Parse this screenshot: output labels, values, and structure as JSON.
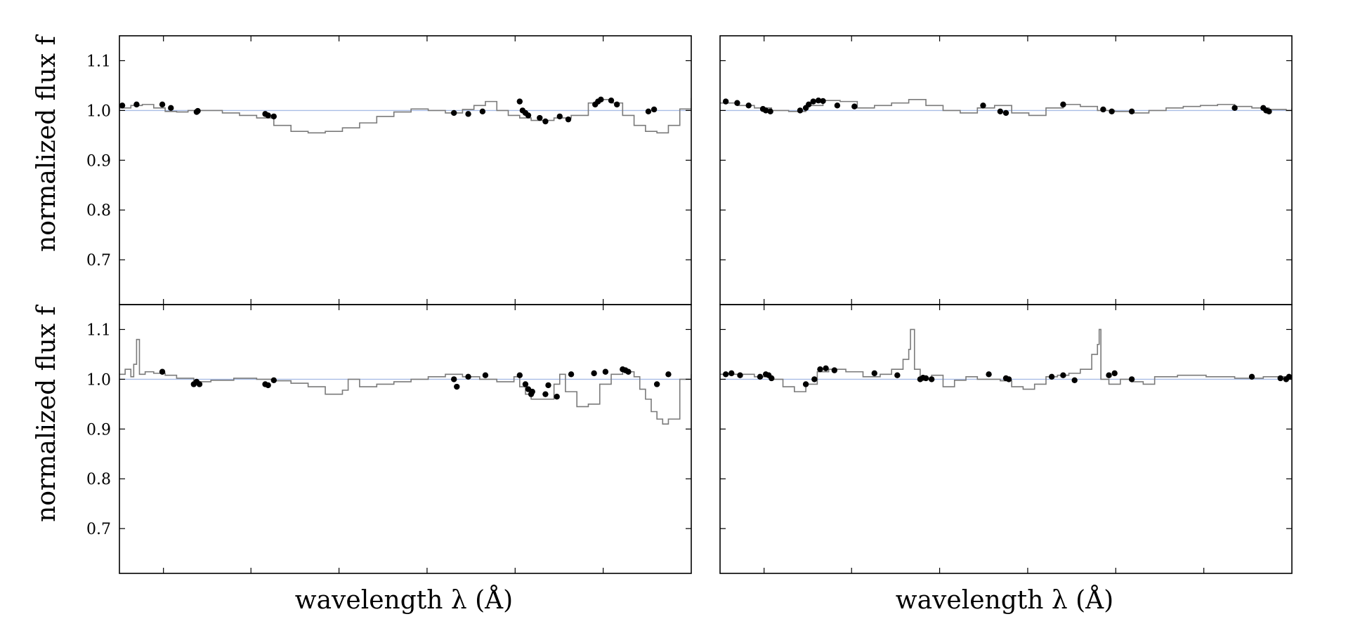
{
  "figure": {
    "ylabel": "normalized flux f",
    "xlabel": "wavelength λ (Å)"
  },
  "colors": {
    "spectrum": "#7a7a7a",
    "points": "#000000",
    "reference_line": "#a9bde6",
    "axes": "#000000"
  },
  "chart_data": [
    {
      "type": "line",
      "panel": "top-left",
      "ylim": [
        0.61,
        1.15
      ],
      "xlim": [
        0,
        1000
      ],
      "yticks": [
        0.7,
        0.8,
        0.9,
        1.0,
        1.1
      ],
      "ytick_labels": [
        "0.7",
        "0.8",
        "0.9",
        "1.0",
        "1.1"
      ],
      "reference_y": 1.0,
      "spectrum_x": [
        0,
        20,
        40,
        60,
        80,
        100,
        120,
        150,
        180,
        210,
        240,
        270,
        300,
        330,
        360,
        390,
        420,
        450,
        480,
        510,
        540,
        570,
        600,
        620,
        640,
        660,
        680,
        700,
        720,
        740,
        760,
        790,
        820,
        840,
        860,
        880,
        900,
        920,
        940,
        960,
        980,
        1000
      ],
      "spectrum_y": [
        1.005,
        1.01,
        1.012,
        1.005,
        0.998,
        0.997,
        1.0,
        1.0,
        0.995,
        0.99,
        0.985,
        0.97,
        0.958,
        0.955,
        0.958,
        0.965,
        0.975,
        0.988,
        0.997,
        1.003,
        1.0,
        0.995,
        1.002,
        1.01,
        1.018,
        1.0,
        0.99,
        0.985,
        0.98,
        0.98,
        0.985,
        0.99,
        1.015,
        1.022,
        1.015,
        0.99,
        0.97,
        0.958,
        0.955,
        0.97,
        1.003,
        1.025
      ],
      "points_x": [
        5,
        30,
        75,
        90,
        135,
        137,
        255,
        260,
        270,
        585,
        610,
        635,
        700,
        705,
        710,
        715,
        735,
        745,
        770,
        785,
        832,
        837,
        842,
        860,
        870,
        925,
        935
      ],
      "points_y": [
        1.01,
        1.012,
        1.012,
        1.005,
        0.997,
        0.999,
        0.993,
        0.99,
        0.988,
        0.995,
        0.993,
        0.998,
        1.018,
        1.0,
        0.995,
        0.99,
        0.985,
        0.978,
        0.988,
        0.982,
        1.012,
        1.018,
        1.022,
        1.02,
        1.012,
        0.998,
        1.002
      ]
    },
    {
      "type": "line",
      "panel": "top-right",
      "ylim": [
        0.61,
        1.15
      ],
      "xlim": [
        0,
        1000
      ],
      "yticks": [
        0.7,
        0.8,
        0.9,
        1.0,
        1.1
      ],
      "ytick_labels": [
        "0.7",
        "0.8",
        "0.9",
        "1.0",
        "1.1"
      ],
      "reference_y": 1.0,
      "spectrum_x": [
        0,
        30,
        60,
        90,
        120,
        150,
        180,
        210,
        240,
        270,
        300,
        330,
        360,
        390,
        420,
        450,
        480,
        510,
        540,
        570,
        600,
        630,
        660,
        690,
        720,
        750,
        780,
        810,
        840,
        870,
        900,
        930,
        960,
        990,
        1000
      ],
      "spectrum_y": [
        1.015,
        1.01,
        1.005,
        1.0,
        0.998,
        1.01,
        1.02,
        1.018,
        1.005,
        1.01,
        1.015,
        1.022,
        1.01,
        1.0,
        0.995,
        1.005,
        1.01,
        0.995,
        0.99,
        1.005,
        1.012,
        1.008,
        1.0,
        0.998,
        0.995,
        1.0,
        1.005,
        1.008,
        1.01,
        1.012,
        1.008,
        1.005,
        1.002,
        1.0,
        1.005
      ],
      "points_x": [
        10,
        30,
        50,
        75,
        80,
        88,
        140,
        150,
        155,
        163,
        172,
        180,
        205,
        235,
        460,
        490,
        500,
        600,
        670,
        685,
        720,
        900,
        950,
        955,
        960
      ],
      "points_y": [
        1.018,
        1.015,
        1.01,
        1.003,
        1.0,
        0.998,
        1.0,
        1.005,
        1.012,
        1.018,
        1.02,
        1.019,
        1.01,
        1.008,
        1.01,
        0.998,
        0.995,
        1.012,
        1.002,
        0.998,
        0.998,
        1.005,
        1.005,
        1.0,
        0.998
      ]
    },
    {
      "type": "line",
      "panel": "bottom-left",
      "ylim": [
        0.61,
        1.15
      ],
      "xlim": [
        0,
        1000
      ],
      "yticks": [
        0.7,
        0.8,
        0.9,
        1.0,
        1.1
      ],
      "ytick_labels": [
        "0.7",
        "0.8",
        "0.9",
        "1.0",
        "1.1"
      ],
      "reference_y": 1.0,
      "spectrum_x": [
        0,
        10,
        20,
        25,
        30,
        35,
        45,
        60,
        80,
        100,
        130,
        160,
        200,
        240,
        270,
        300,
        330,
        360,
        390,
        400,
        420,
        450,
        480,
        510,
        540,
        570,
        600,
        630,
        660,
        690,
        700,
        710,
        720,
        740,
        760,
        770,
        780,
        800,
        820,
        840,
        860,
        880,
        900,
        910,
        920,
        930,
        940,
        950,
        960,
        980,
        1000
      ],
      "spectrum_y": [
        1.01,
        1.02,
        1.005,
        1.03,
        1.08,
        1.01,
        1.015,
        1.012,
        1.008,
        1.002,
        0.995,
        0.998,
        1.002,
        1.0,
        0.997,
        0.992,
        0.985,
        0.97,
        0.978,
        1.0,
        0.985,
        0.99,
        0.995,
        1.0,
        1.005,
        1.01,
        1.005,
        1.0,
        0.995,
        1.005,
        0.985,
        0.97,
        0.96,
        0.96,
        0.99,
        1.01,
        0.975,
        0.945,
        0.95,
        0.99,
        1.01,
        1.015,
        1.005,
        0.98,
        0.96,
        0.935,
        0.92,
        0.91,
        0.92,
        1.0,
        1.01
      ],
      "points_x": [
        75,
        130,
        135,
        140,
        255,
        260,
        270,
        585,
        590,
        610,
        640,
        700,
        720,
        710,
        715,
        722,
        745,
        750,
        765,
        790,
        830,
        850,
        880,
        885,
        890,
        940,
        960
      ],
      "points_y": [
        1.015,
        0.99,
        0.995,
        0.99,
        0.99,
        0.988,
        0.998,
        1.0,
        0.985,
        1.005,
        1.008,
        1.008,
        0.97,
        0.99,
        0.98,
        0.975,
        0.97,
        0.988,
        0.965,
        1.01,
        1.012,
        1.015,
        1.02,
        1.018,
        1.015,
        0.99,
        1.01
      ]
    },
    {
      "type": "line",
      "panel": "bottom-right",
      "ylim": [
        0.61,
        1.15
      ],
      "xlim": [
        0,
        1000
      ],
      "yticks": [
        0.7,
        0.8,
        0.9,
        1.0,
        1.1
      ],
      "ytick_labels": [
        "0.7",
        "0.8",
        "0.9",
        "1.0",
        "1.1"
      ],
      "reference_y": 1.0,
      "spectrum_x": [
        0,
        30,
        60,
        90,
        110,
        130,
        150,
        170,
        190,
        220,
        250,
        280,
        300,
        320,
        330,
        333,
        340,
        350,
        370,
        390,
        410,
        430,
        450,
        470,
        490,
        510,
        530,
        550,
        570,
        590,
        610,
        630,
        650,
        660,
        663,
        666,
        680,
        700,
        720,
        740,
        760,
        800,
        850,
        900,
        950,
        1000
      ],
      "spectrum_y": [
        1.01,
        1.01,
        1.005,
        1.0,
        0.985,
        0.975,
        0.99,
        1.015,
        1.02,
        1.015,
        1.005,
        1.01,
        1.02,
        1.04,
        1.06,
        1.1,
        1.02,
        1.0,
        1.008,
        0.985,
        0.998,
        1.005,
        1.0,
        1.0,
        0.997,
        0.985,
        0.98,
        0.99,
        1.005,
        1.008,
        1.012,
        1.02,
        1.05,
        1.07,
        1.1,
        1.0,
        0.99,
        1.0,
        0.995,
        0.99,
        1.005,
        1.008,
        1.005,
        1.002,
        1.005,
        1.008
      ],
      "points_x": [
        10,
        20,
        35,
        70,
        80,
        85,
        90,
        150,
        165,
        175,
        185,
        200,
        270,
        310,
        350,
        355,
        360,
        370,
        470,
        500,
        505,
        580,
        600,
        620,
        680,
        690,
        720,
        930,
        980,
        990,
        995
      ],
      "points_y": [
        1.01,
        1.012,
        1.008,
        1.005,
        1.01,
        1.008,
        1.002,
        0.99,
        1.0,
        1.02,
        1.022,
        1.018,
        1.012,
        1.008,
        1.0,
        1.003,
        1.002,
        1.0,
        1.01,
        1.002,
        1.0,
        1.005,
        1.008,
        0.998,
        1.008,
        1.012,
        1.0,
        1.005,
        1.002,
        1.0,
        1.005
      ]
    }
  ]
}
